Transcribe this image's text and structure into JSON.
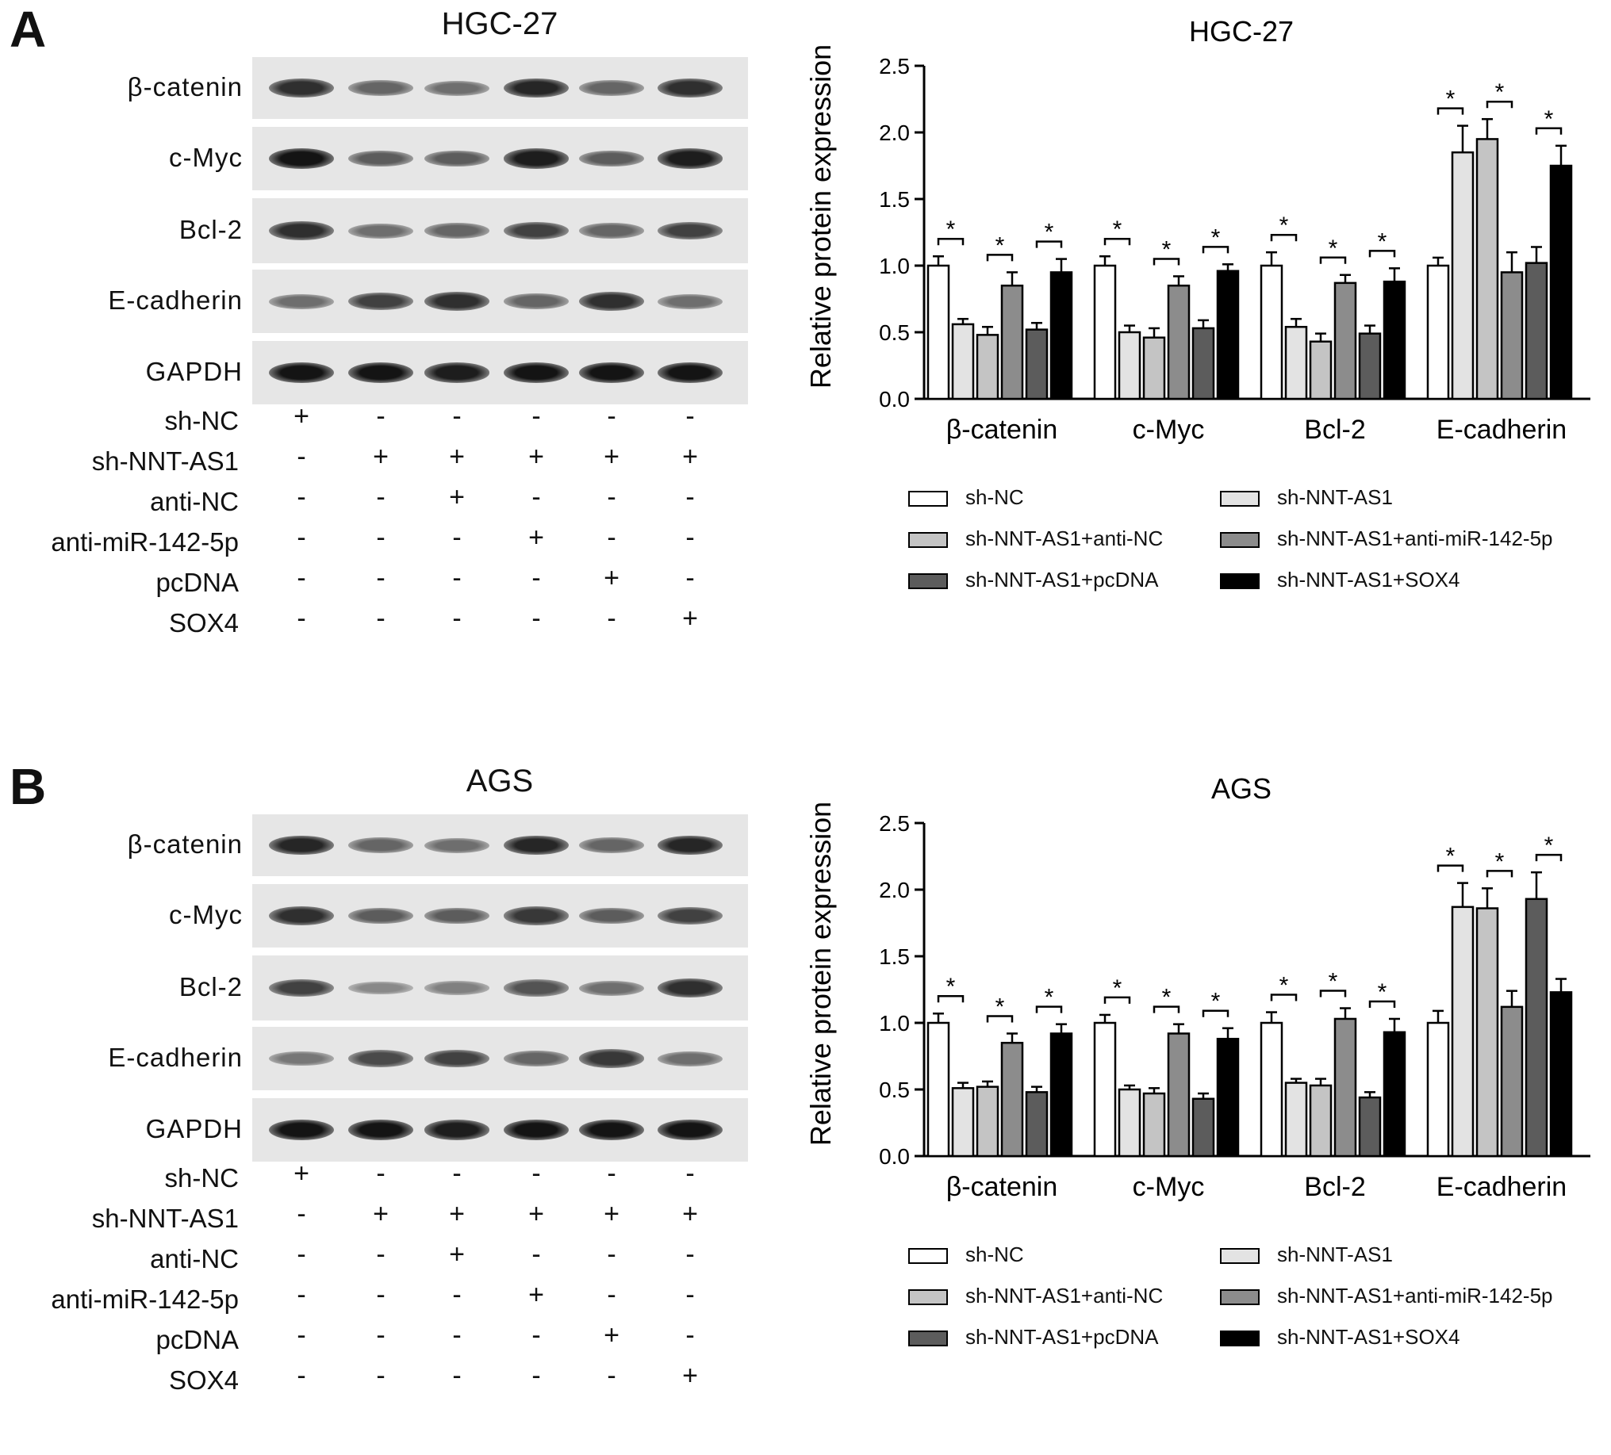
{
  "panels": [
    {
      "letter": "A",
      "cell_line": "HGC-27",
      "blot_rows": [
        {
          "label": "β-catenin",
          "intensities": [
            0.85,
            0.55,
            0.5,
            0.9,
            0.55,
            0.85
          ]
        },
        {
          "label": "c-Myc",
          "intensities": [
            1.0,
            0.6,
            0.6,
            0.95,
            0.6,
            0.95
          ]
        },
        {
          "label": "Bcl-2",
          "intensities": [
            0.85,
            0.5,
            0.55,
            0.75,
            0.55,
            0.75
          ]
        },
        {
          "label": "E-cadherin",
          "intensities": [
            0.5,
            0.75,
            0.85,
            0.55,
            0.85,
            0.5
          ]
        },
        {
          "label": "GAPDH",
          "intensities": [
            1.0,
            1.0,
            0.95,
            1.0,
            1.0,
            1.0
          ]
        }
      ],
      "conditions": [
        {
          "label": "sh-NC",
          "signs": [
            "+",
            "-",
            "-",
            "-",
            "-",
            "-"
          ]
        },
        {
          "label": "sh-NNT-AS1",
          "signs": [
            "-",
            "+",
            "+",
            "+",
            "+",
            "+"
          ]
        },
        {
          "label": "anti-NC",
          "signs": [
            "-",
            "-",
            "+",
            "-",
            "-",
            "-"
          ]
        },
        {
          "label": "anti-miR-142-5p",
          "signs": [
            "-",
            "-",
            "-",
            "+",
            "-",
            "-"
          ]
        },
        {
          "label": "pcDNA",
          "signs": [
            "-",
            "-",
            "-",
            "-",
            "+",
            "-"
          ]
        },
        {
          "label": "SOX4",
          "signs": [
            "-",
            "-",
            "-",
            "-",
            "-",
            "+"
          ]
        }
      ]
    },
    {
      "letter": "B",
      "cell_line": "AGS",
      "blot_rows": [
        {
          "label": "β-catenin",
          "intensities": [
            0.9,
            0.55,
            0.5,
            0.9,
            0.55,
            0.9
          ]
        },
        {
          "label": "c-Myc",
          "intensities": [
            0.85,
            0.6,
            0.6,
            0.8,
            0.6,
            0.75
          ]
        },
        {
          "label": "Bcl-2",
          "intensities": [
            0.75,
            0.35,
            0.4,
            0.65,
            0.5,
            0.85
          ]
        },
        {
          "label": "E-cadherin",
          "intensities": [
            0.45,
            0.7,
            0.75,
            0.55,
            0.8,
            0.5
          ]
        },
        {
          "label": "GAPDH",
          "intensities": [
            1.0,
            1.0,
            0.95,
            1.0,
            1.0,
            1.0
          ]
        }
      ],
      "conditions": [
        {
          "label": "sh-NC",
          "signs": [
            "+",
            "-",
            "-",
            "-",
            "-",
            "-"
          ]
        },
        {
          "label": "sh-NNT-AS1",
          "signs": [
            "-",
            "+",
            "+",
            "+",
            "+",
            "+"
          ]
        },
        {
          "label": "anti-NC",
          "signs": [
            "-",
            "-",
            "+",
            "-",
            "-",
            "-"
          ]
        },
        {
          "label": "anti-miR-142-5p",
          "signs": [
            "-",
            "-",
            "-",
            "+",
            "-",
            "-"
          ]
        },
        {
          "label": "pcDNA",
          "signs": [
            "-",
            "-",
            "-",
            "-",
            "+",
            "-"
          ]
        },
        {
          "label": "SOX4",
          "signs": [
            "-",
            "-",
            "-",
            "-",
            "-",
            "+"
          ]
        }
      ]
    }
  ],
  "legend": [
    {
      "name": "sh-NC",
      "color": "#ffffff"
    },
    {
      "name": "sh-NNT-AS1",
      "color": "#e3e3e3"
    },
    {
      "name": "sh-NNT-AS1+anti-NC",
      "color": "#c4c4c4"
    },
    {
      "name": "sh-NNT-AS1+anti-miR-142-5p",
      "color": "#8c8c8c"
    },
    {
      "name": "sh-NNT-AS1+pcDNA",
      "color": "#5c5c5c"
    },
    {
      "name": "sh-NNT-AS1+SOX4",
      "color": "#000000"
    }
  ],
  "significance_mark": "*",
  "chart_data": [
    {
      "type": "bar",
      "title": "HGC-27",
      "xlabel": "",
      "ylabel": "Relative protein expression",
      "ylim": [
        0,
        2.5
      ],
      "yticks": [
        "0.0",
        "0.5",
        "1.0",
        "1.5",
        "2.0",
        "2.5"
      ],
      "categories": [
        "β-catenin",
        "c-Myc",
        "Bcl-2",
        "E-cadherin"
      ],
      "series": [
        {
          "name": "sh-NC",
          "values": [
            1.0,
            1.0,
            1.0,
            1.0
          ],
          "errors": [
            0.07,
            0.07,
            0.1,
            0.06
          ]
        },
        {
          "name": "sh-NNT-AS1",
          "values": [
            0.56,
            0.5,
            0.54,
            1.85
          ],
          "errors": [
            0.04,
            0.05,
            0.06,
            0.2
          ]
        },
        {
          "name": "sh-NNT-AS1+anti-NC",
          "values": [
            0.48,
            0.46,
            0.43,
            1.95
          ],
          "errors": [
            0.06,
            0.07,
            0.06,
            0.15
          ]
        },
        {
          "name": "sh-NNT-AS1+anti-miR-142-5p",
          "values": [
            0.85,
            0.85,
            0.87,
            0.95
          ],
          "errors": [
            0.1,
            0.07,
            0.06,
            0.15
          ]
        },
        {
          "name": "sh-NNT-AS1+pcDNA",
          "values": [
            0.52,
            0.53,
            0.49,
            1.02
          ],
          "errors": [
            0.05,
            0.06,
            0.06,
            0.12
          ]
        },
        {
          "name": "sh-NNT-AS1+SOX4",
          "values": [
            0.95,
            0.96,
            0.88,
            1.75
          ],
          "errors": [
            0.1,
            0.05,
            0.1,
            0.15
          ]
        }
      ]
    },
    {
      "type": "bar",
      "title": "AGS",
      "xlabel": "",
      "ylabel": "Relative protein expression",
      "ylim": [
        0,
        2.5
      ],
      "yticks": [
        "0.0",
        "0.5",
        "1.0",
        "1.5",
        "2.0",
        "2.5"
      ],
      "categories": [
        "β-catenin",
        "c-Myc",
        "Bcl-2",
        "E-cadherin"
      ],
      "series": [
        {
          "name": "sh-NC",
          "values": [
            1.0,
            1.0,
            1.0,
            1.0
          ],
          "errors": [
            0.07,
            0.06,
            0.08,
            0.09
          ]
        },
        {
          "name": "sh-NNT-AS1",
          "values": [
            0.51,
            0.5,
            0.55,
            1.87
          ],
          "errors": [
            0.04,
            0.03,
            0.03,
            0.18
          ]
        },
        {
          "name": "sh-NNT-AS1+anti-NC",
          "values": [
            0.52,
            0.47,
            0.53,
            1.86
          ],
          "errors": [
            0.04,
            0.04,
            0.05,
            0.15
          ]
        },
        {
          "name": "sh-NNT-AS1+anti-miR-142-5p",
          "values": [
            0.85,
            0.92,
            1.03,
            1.12
          ],
          "errors": [
            0.07,
            0.07,
            0.08,
            0.12
          ]
        },
        {
          "name": "sh-NNT-AS1+pcDNA",
          "values": [
            0.48,
            0.43,
            0.44,
            1.93
          ],
          "errors": [
            0.04,
            0.04,
            0.04,
            0.2
          ]
        },
        {
          "name": "sh-NNT-AS1+SOX4",
          "values": [
            0.92,
            0.88,
            0.93,
            1.23
          ],
          "errors": [
            0.07,
            0.08,
            0.1,
            0.1
          ]
        }
      ]
    }
  ]
}
